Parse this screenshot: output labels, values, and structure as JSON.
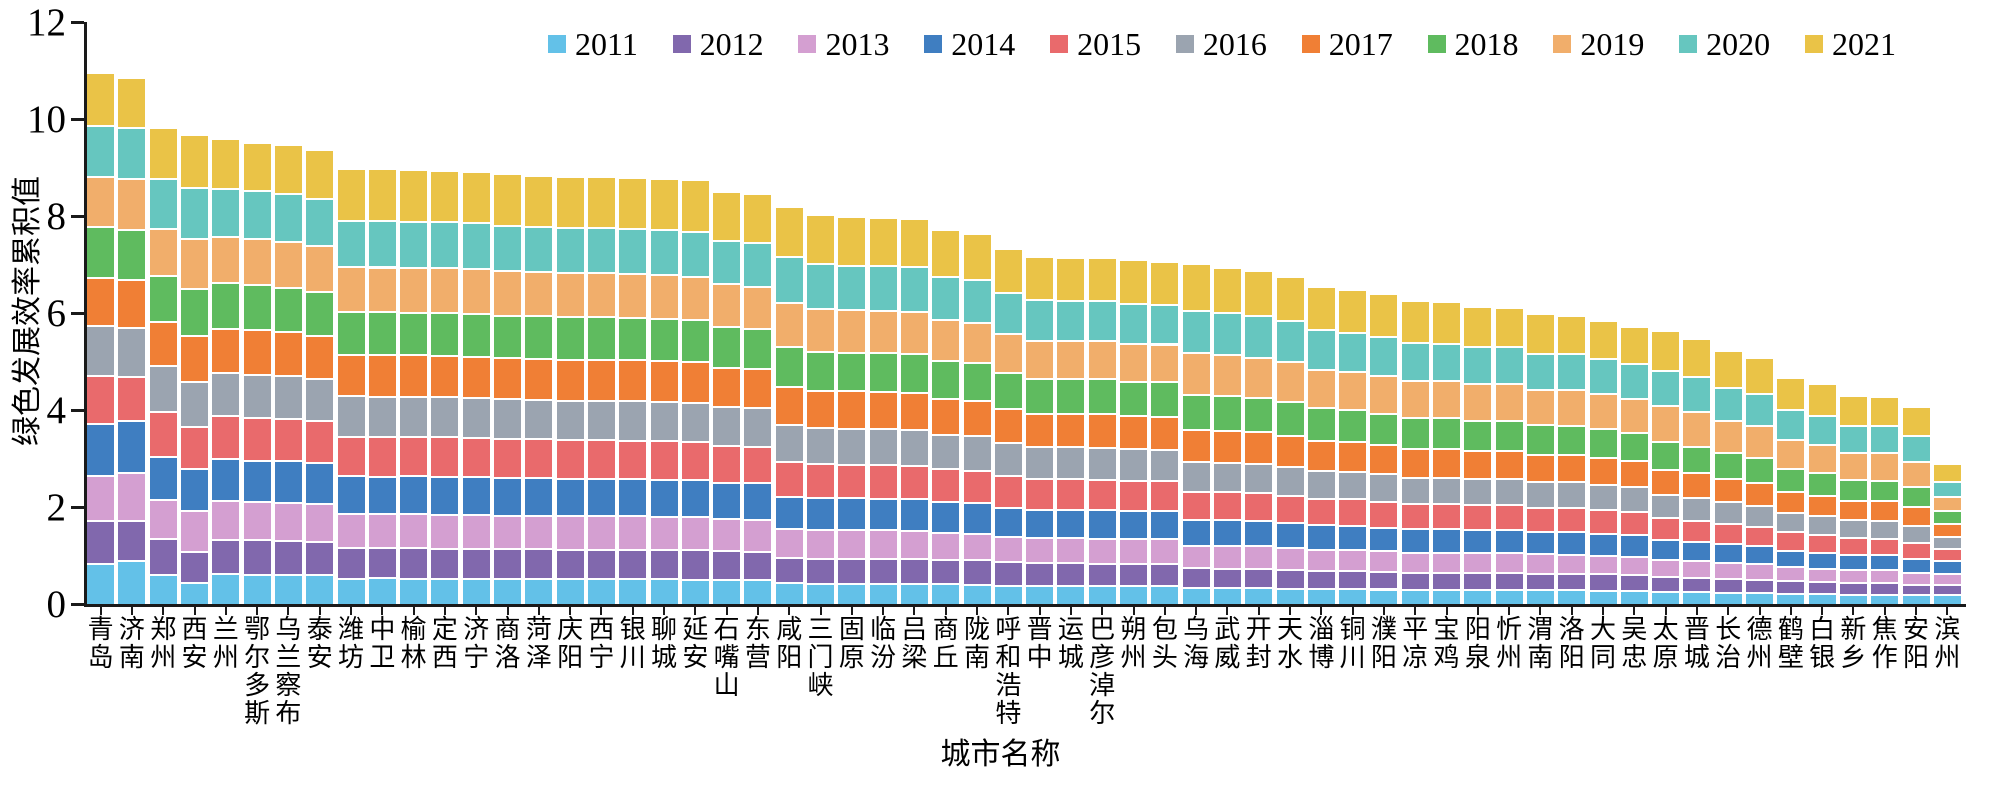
{
  "chart_data": {
    "type": "bar",
    "stacked": true,
    "title": "",
    "xlabel": "城市名称",
    "ylabel": "绿色发展效率累积值",
    "ylim": [
      0,
      12
    ],
    "yticks": [
      0,
      2,
      4,
      6,
      8,
      10,
      12
    ],
    "grid": false,
    "legend_position": "top",
    "years": [
      "2011",
      "2012",
      "2013",
      "2014",
      "2015",
      "2016",
      "2017",
      "2018",
      "2019",
      "2020",
      "2021"
    ],
    "colors": [
      "#63C1E8",
      "#8168AD",
      "#D49FD1",
      "#3F7EC1",
      "#E96A6C",
      "#9BA4B0",
      "#F07F35",
      "#5FBB5F",
      "#F1AE6B",
      "#66C6BF",
      "#EAC347"
    ],
    "cities": [
      {
        "name": "青岛",
        "values": [
          0.85,
          0.88,
          0.94,
          1.06,
          1.0,
          1.04,
          0.98,
          1.05,
          1.04,
          1.06,
          1.09
        ]
      },
      {
        "name": "济南",
        "values": [
          0.91,
          0.83,
          0.99,
          1.07,
          0.9,
          1.02,
          0.99,
          1.03,
          1.05,
          1.07,
          1.02
        ]
      },
      {
        "name": "郑州",
        "values": [
          0.62,
          0.75,
          0.8,
          0.88,
          0.93,
          0.95,
          0.92,
          0.95,
          0.97,
          1.03,
          1.05
        ]
      },
      {
        "name": "西安",
        "values": [
          0.45,
          0.65,
          0.85,
          0.85,
          0.88,
          0.92,
          0.95,
          0.98,
          1.02,
          1.06,
          1.09
        ]
      },
      {
        "name": "兰州",
        "values": [
          0.63,
          0.72,
          0.79,
          0.87,
          0.89,
          0.9,
          0.91,
          0.93,
          0.96,
          0.99,
          1.03
        ]
      },
      {
        "name": "鄂尔多斯",
        "values": [
          0.62,
          0.72,
          0.78,
          0.86,
          0.88,
          0.9,
          0.91,
          0.93,
          0.96,
          0.98,
          1.01
        ]
      },
      {
        "name": "乌兰察布",
        "values": [
          0.62,
          0.71,
          0.78,
          0.86,
          0.87,
          0.89,
          0.9,
          0.92,
          0.95,
          0.98,
          1.02
        ]
      },
      {
        "name": "泰安",
        "values": [
          0.61,
          0.7,
          0.77,
          0.85,
          0.86,
          0.88,
          0.89,
          0.91,
          0.94,
          0.97,
          1.02
        ]
      },
      {
        "name": "潍坊",
        "values": [
          0.54,
          0.63,
          0.7,
          0.79,
          0.81,
          0.84,
          0.86,
          0.88,
          0.93,
          0.95,
          1.07
        ]
      },
      {
        "name": "中卫",
        "values": [
          0.55,
          0.62,
          0.7,
          0.78,
          0.82,
          0.83,
          0.86,
          0.89,
          0.92,
          0.96,
          1.07
        ]
      },
      {
        "name": "榆林",
        "values": [
          0.54,
          0.63,
          0.7,
          0.79,
          0.81,
          0.83,
          0.86,
          0.88,
          0.92,
          0.95,
          1.07
        ]
      },
      {
        "name": "定西",
        "values": [
          0.54,
          0.62,
          0.7,
          0.79,
          0.81,
          0.83,
          0.86,
          0.88,
          0.92,
          0.95,
          1.06
        ]
      },
      {
        "name": "济宁",
        "values": [
          0.53,
          0.62,
          0.7,
          0.79,
          0.8,
          0.83,
          0.86,
          0.88,
          0.92,
          0.95,
          1.06
        ]
      },
      {
        "name": "商洛",
        "values": [
          0.53,
          0.62,
          0.69,
          0.78,
          0.8,
          0.83,
          0.85,
          0.87,
          0.92,
          0.94,
          1.07
        ]
      },
      {
        "name": "菏泽",
        "values": [
          0.53,
          0.62,
          0.69,
          0.78,
          0.8,
          0.82,
          0.85,
          0.87,
          0.91,
          0.94,
          1.05
        ]
      },
      {
        "name": "庆阳",
        "values": [
          0.53,
          0.61,
          0.69,
          0.78,
          0.79,
          0.82,
          0.85,
          0.87,
          0.91,
          0.94,
          1.05
        ]
      },
      {
        "name": "西宁",
        "values": [
          0.53,
          0.61,
          0.69,
          0.77,
          0.8,
          0.82,
          0.85,
          0.87,
          0.91,
          0.93,
          1.05
        ]
      },
      {
        "name": "银川",
        "values": [
          0.53,
          0.61,
          0.69,
          0.77,
          0.79,
          0.82,
          0.85,
          0.86,
          0.91,
          0.93,
          1.05
        ]
      },
      {
        "name": "聊城",
        "values": [
          0.53,
          0.61,
          0.68,
          0.77,
          0.79,
          0.82,
          0.84,
          0.86,
          0.91,
          0.93,
          1.05
        ]
      },
      {
        "name": "延安",
        "values": [
          0.52,
          0.61,
          0.68,
          0.77,
          0.79,
          0.81,
          0.84,
          0.86,
          0.9,
          0.93,
          1.06
        ]
      },
      {
        "name": "石嘴山",
        "values": [
          0.51,
          0.6,
          0.66,
          0.75,
          0.77,
          0.79,
          0.82,
          0.84,
          0.88,
          0.9,
          1.0
        ]
      },
      {
        "name": "东营",
        "values": [
          0.51,
          0.59,
          0.66,
          0.75,
          0.76,
          0.79,
          0.81,
          0.83,
          0.87,
          0.9,
          1.02
        ]
      },
      {
        "name": "咸阳",
        "values": [
          0.45,
          0.53,
          0.59,
          0.67,
          0.72,
          0.76,
          0.79,
          0.82,
          0.9,
          0.95,
          1.04
        ]
      },
      {
        "name": "三门峡",
        "values": [
          0.44,
          0.52,
          0.58,
          0.66,
          0.71,
          0.74,
          0.77,
          0.81,
          0.89,
          0.93,
          1.01
        ]
      },
      {
        "name": "固原",
        "values": [
          0.44,
          0.52,
          0.58,
          0.66,
          0.7,
          0.74,
          0.77,
          0.8,
          0.88,
          0.92,
          1.01
        ]
      },
      {
        "name": "临汾",
        "values": [
          0.44,
          0.52,
          0.58,
          0.65,
          0.7,
          0.74,
          0.77,
          0.8,
          0.88,
          0.92,
          1.0
        ]
      },
      {
        "name": "吕梁",
        "values": [
          0.44,
          0.52,
          0.57,
          0.65,
          0.7,
          0.73,
          0.77,
          0.8,
          0.88,
          0.92,
          1.0
        ]
      },
      {
        "name": "商丘",
        "values": [
          0.43,
          0.5,
          0.56,
          0.64,
          0.68,
          0.71,
          0.74,
          0.78,
          0.85,
          0.89,
          0.97
        ]
      },
      {
        "name": "陇南",
        "values": [
          0.42,
          0.5,
          0.55,
          0.63,
          0.67,
          0.71,
          0.74,
          0.77,
          0.84,
          0.88,
          0.96
        ]
      },
      {
        "name": "呼和浩特",
        "values": [
          0.4,
          0.48,
          0.53,
          0.6,
          0.65,
          0.68,
          0.71,
          0.74,
          0.81,
          0.85,
          0.91
        ]
      },
      {
        "name": "晋中",
        "values": [
          0.39,
          0.47,
          0.52,
          0.59,
          0.63,
          0.66,
          0.69,
          0.72,
          0.79,
          0.83,
          0.89
        ]
      },
      {
        "name": "运城",
        "values": [
          0.39,
          0.47,
          0.52,
          0.59,
          0.63,
          0.66,
          0.69,
          0.72,
          0.79,
          0.82,
          0.89
        ]
      },
      {
        "name": "巴彦淖尔",
        "values": [
          0.39,
          0.46,
          0.52,
          0.59,
          0.63,
          0.66,
          0.69,
          0.72,
          0.79,
          0.82,
          0.89
        ]
      },
      {
        "name": "朔州",
        "values": [
          0.39,
          0.46,
          0.51,
          0.58,
          0.63,
          0.65,
          0.68,
          0.71,
          0.78,
          0.82,
          0.91
        ]
      },
      {
        "name": "包头",
        "values": [
          0.39,
          0.46,
          0.51,
          0.58,
          0.62,
          0.65,
          0.68,
          0.71,
          0.78,
          0.81,
          0.89
        ]
      },
      {
        "name": "乌海",
        "values": [
          0.35,
          0.41,
          0.46,
          0.54,
          0.58,
          0.62,
          0.66,
          0.72,
          0.86,
          0.88,
          0.96
        ]
      },
      {
        "name": "武威",
        "values": [
          0.35,
          0.4,
          0.46,
          0.54,
          0.58,
          0.61,
          0.66,
          0.71,
          0.85,
          0.87,
          0.94
        ]
      },
      {
        "name": "开封",
        "values": [
          0.35,
          0.4,
          0.46,
          0.53,
          0.57,
          0.61,
          0.65,
          0.7,
          0.84,
          0.86,
          0.93
        ]
      },
      {
        "name": "天水",
        "values": [
          0.34,
          0.39,
          0.45,
          0.52,
          0.56,
          0.6,
          0.64,
          0.69,
          0.83,
          0.85,
          0.91
        ]
      },
      {
        "name": "淄博",
        "values": [
          0.33,
          0.38,
          0.43,
          0.51,
          0.54,
          0.58,
          0.62,
          0.67,
          0.8,
          0.82,
          0.88
        ]
      },
      {
        "name": "铜川",
        "values": [
          0.33,
          0.38,
          0.43,
          0.5,
          0.54,
          0.57,
          0.61,
          0.66,
          0.79,
          0.81,
          0.88
        ]
      },
      {
        "name": "濮阳",
        "values": [
          0.32,
          0.37,
          0.42,
          0.49,
          0.53,
          0.57,
          0.6,
          0.65,
          0.78,
          0.8,
          0.89
        ]
      },
      {
        "name": "平凉",
        "values": [
          0.31,
          0.36,
          0.41,
          0.48,
          0.52,
          0.55,
          0.59,
          0.64,
          0.77,
          0.79,
          0.86
        ]
      },
      {
        "name": "宝鸡",
        "values": [
          0.31,
          0.36,
          0.41,
          0.48,
          0.52,
          0.55,
          0.59,
          0.64,
          0.76,
          0.78,
          0.85
        ]
      },
      {
        "name": "阳泉",
        "values": [
          0.31,
          0.36,
          0.41,
          0.47,
          0.51,
          0.54,
          0.58,
          0.63,
          0.75,
          0.77,
          0.83
        ]
      },
      {
        "name": "忻州",
        "values": [
          0.31,
          0.36,
          0.41,
          0.47,
          0.51,
          0.54,
          0.58,
          0.63,
          0.75,
          0.77,
          0.81
        ]
      },
      {
        "name": "渭南",
        "values": [
          0.3,
          0.35,
          0.4,
          0.46,
          0.5,
          0.53,
          0.56,
          0.61,
          0.73,
          0.75,
          0.81
        ]
      },
      {
        "name": "洛阳",
        "values": [
          0.3,
          0.35,
          0.39,
          0.46,
          0.5,
          0.53,
          0.56,
          0.61,
          0.73,
          0.75,
          0.79
        ]
      },
      {
        "name": "大同",
        "values": [
          0.29,
          0.34,
          0.39,
          0.45,
          0.49,
          0.52,
          0.55,
          0.6,
          0.72,
          0.73,
          0.79
        ]
      },
      {
        "name": "吴忠",
        "values": [
          0.29,
          0.33,
          0.38,
          0.44,
          0.48,
          0.51,
          0.54,
          0.59,
          0.7,
          0.72,
          0.76
        ]
      },
      {
        "name": "太原",
        "values": [
          0.27,
          0.31,
          0.35,
          0.41,
          0.45,
          0.48,
          0.52,
          0.57,
          0.74,
          0.74,
          0.82
        ]
      },
      {
        "name": "晋城",
        "values": [
          0.26,
          0.3,
          0.34,
          0.4,
          0.44,
          0.47,
          0.51,
          0.55,
          0.72,
          0.72,
          0.79
        ]
      },
      {
        "name": "长治",
        "values": [
          0.25,
          0.29,
          0.33,
          0.38,
          0.42,
          0.45,
          0.48,
          0.53,
          0.68,
          0.68,
          0.76
        ]
      },
      {
        "name": "德州",
        "values": [
          0.24,
          0.28,
          0.32,
          0.37,
          0.41,
          0.43,
          0.47,
          0.51,
          0.66,
          0.66,
          0.75
        ]
      },
      {
        "name": "鹤壁",
        "values": [
          0.23,
          0.26,
          0.29,
          0.34,
          0.38,
          0.4,
          0.43,
          0.47,
          0.61,
          0.61,
          0.67
        ]
      },
      {
        "name": "白银",
        "values": [
          0.22,
          0.25,
          0.28,
          0.33,
          0.37,
          0.39,
          0.42,
          0.46,
          0.59,
          0.59,
          0.67
        ]
      },
      {
        "name": "新乡",
        "values": [
          0.21,
          0.24,
          0.27,
          0.31,
          0.35,
          0.37,
          0.4,
          0.43,
          0.56,
          0.56,
          0.62
        ]
      },
      {
        "name": "焦作",
        "values": [
          0.21,
          0.24,
          0.27,
          0.31,
          0.34,
          0.37,
          0.4,
          0.43,
          0.56,
          0.56,
          0.61
        ]
      },
      {
        "name": "安阳",
        "values": [
          0.2,
          0.22,
          0.25,
          0.29,
          0.33,
          0.35,
          0.38,
          0.41,
          0.53,
          0.53,
          0.59
        ]
      },
      {
        "name": "滨州",
        "values": [
          0.2,
          0.22,
          0.23,
          0.25,
          0.25,
          0.26,
          0.26,
          0.28,
          0.29,
          0.31,
          0.36
        ]
      }
    ]
  }
}
